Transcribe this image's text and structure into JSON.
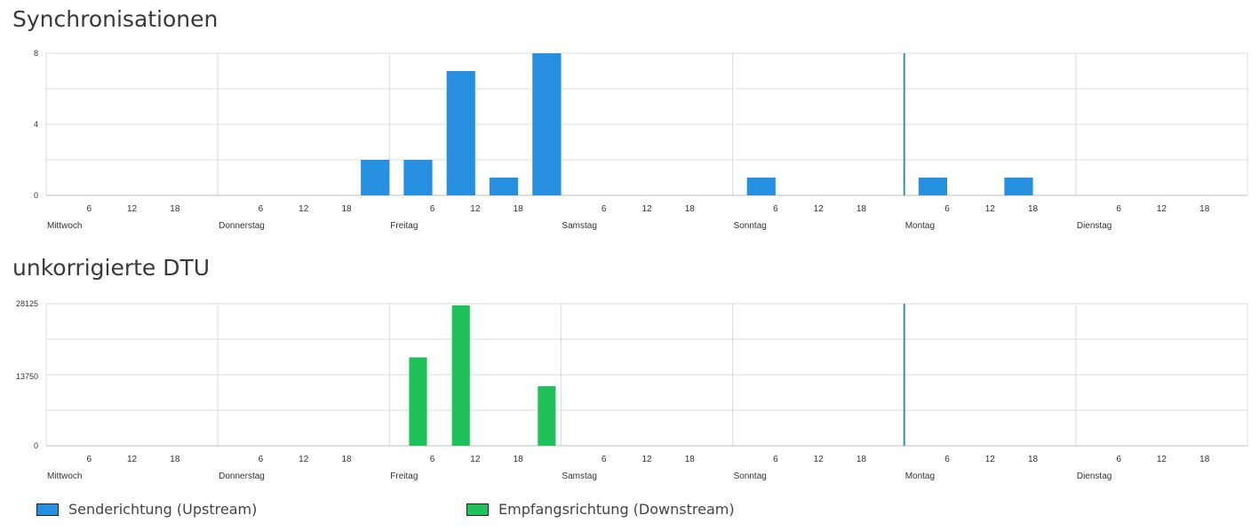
{
  "legend": [
    {
      "name": "Senderichtung (Upstream)",
      "color": "#268fe0"
    },
    {
      "name": "Empfangsrichtung (Downstream)",
      "color": "#1fc15b"
    }
  ],
  "chart_data": [
    {
      "type": "bar",
      "title": "Synchronisationen",
      "x_unit": "hours",
      "x_range": [
        0,
        168
      ],
      "days": [
        "Mittwoch",
        "Donnerstag",
        "Freitag",
        "Samstag",
        "Sonntag",
        "Montag",
        "Dienstag"
      ],
      "hour_ticks": [
        "6",
        "12",
        "18"
      ],
      "ylim": [
        0,
        8
      ],
      "yticks": [
        "0",
        "4",
        "8"
      ],
      "grid": true,
      "marker_x": 120,
      "bar_width_hours": 4,
      "series": [
        {
          "name": "Senderichtung (Upstream)",
          "color": "#268fe0",
          "points": [
            {
              "x": 46,
              "y": 2
            },
            {
              "x": 52,
              "y": 2
            },
            {
              "x": 58,
              "y": 7
            },
            {
              "x": 64,
              "y": 1
            },
            {
              "x": 70,
              "y": 8
            },
            {
              "x": 100,
              "y": 1
            },
            {
              "x": 124,
              "y": 1
            },
            {
              "x": 136,
              "y": 1
            }
          ]
        }
      ]
    },
    {
      "type": "bar",
      "title": "unkorrigierte DTU",
      "x_unit": "hours",
      "x_range": [
        0,
        168
      ],
      "days": [
        "Mittwoch",
        "Donnerstag",
        "Freitag",
        "Samstag",
        "Sonntag",
        "Montag",
        "Dienstag"
      ],
      "hour_ticks": [
        "6",
        "12",
        "18"
      ],
      "ylim": [
        0,
        28125
      ],
      "yticks": [
        "0",
        "13750",
        "28125"
      ],
      "grid": true,
      "marker_x": 120,
      "bar_width_hours": 2.5,
      "series": [
        {
          "name": "Empfangsrichtung (Downstream)",
          "color": "#1fc15b",
          "points": [
            {
              "x": 52,
              "y": 17500
            },
            {
              "x": 58,
              "y": 27800
            },
            {
              "x": 70,
              "y": 11800
            }
          ]
        }
      ]
    }
  ]
}
